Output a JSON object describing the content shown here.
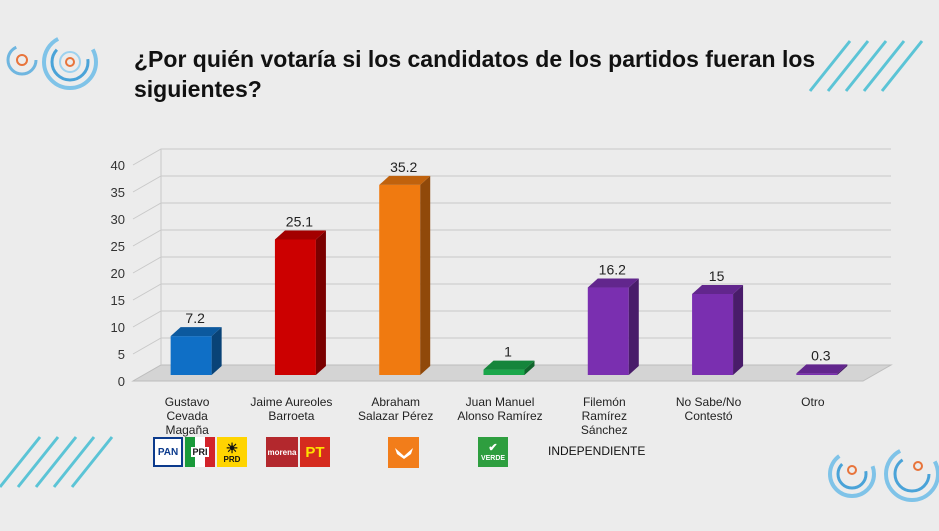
{
  "title": "¿Por quién votaría si los candidatos de los partidos fueran los siguientes?",
  "chart_data": {
    "type": "bar",
    "title": "¿Por quién votaría si los candidatos de los partidos fueran los siguientes?",
    "categories": [
      [
        "Gustavo",
        "Cevada",
        "Magaña"
      ],
      [
        "Jaime Aureoles",
        "Barroeta"
      ],
      [
        "Abraham",
        "Salazar Pérez"
      ],
      [
        "Juan Manuel",
        "Alonso Ramírez"
      ],
      [
        "Filemón",
        "Ramírez",
        "Sánchez"
      ],
      [
        "No Sabe/No",
        "Contestó"
      ],
      [
        "Otro"
      ]
    ],
    "values": [
      7.2,
      25.1,
      35.2,
      1,
      16.2,
      15,
      0.3
    ],
    "value_labels": [
      "7.2",
      "25.1",
      "35.2",
      "1",
      "16.2",
      "15",
      "0.3"
    ],
    "colors": [
      "#0f6fc6",
      "#cc0000",
      "#f07a10",
      "#1aa64a",
      "#7a2fb0",
      "#7a2fb0",
      "#7a2fb0"
    ],
    "ylim": [
      0,
      40
    ],
    "yticks": [
      "0",
      "5",
      "10",
      "15",
      "20",
      "25",
      "30",
      "35",
      "40"
    ],
    "xlabel": "",
    "ylabel": ""
  },
  "logos": {
    "pan": "PAN",
    "pri": "PRI",
    "prd": "PRD",
    "morena": "morena",
    "pt": "PT",
    "verde": "VERDE",
    "independiente": "INDEPENDIENTE"
  },
  "icons": [
    "circle-swirl-icon",
    "diagonal-stripes-icon",
    "mc-eagle-icon",
    "toucan-icon"
  ]
}
